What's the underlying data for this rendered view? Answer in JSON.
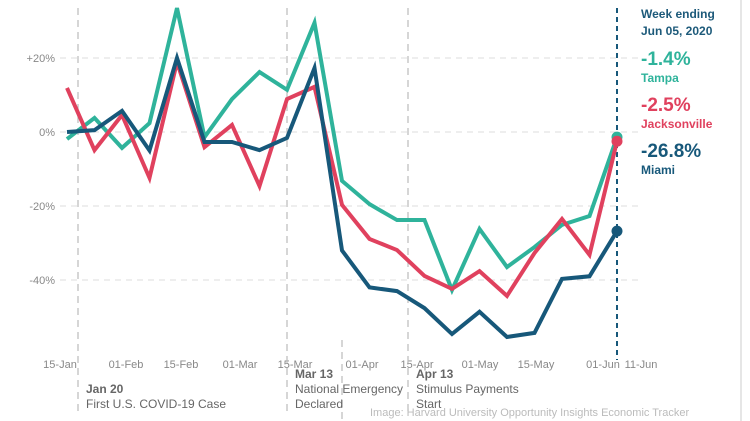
{
  "chart_data": {
    "type": "line",
    "title": "",
    "xlabel": "",
    "ylabel": "",
    "x": [
      "Jan 17",
      "Jan 24",
      "Jan 31",
      "Feb 07",
      "Feb 14",
      "Feb 21",
      "Feb 28",
      "Mar 06",
      "Mar 13",
      "Mar 20",
      "Mar 27",
      "Apr 03",
      "Apr 10",
      "Apr 17",
      "Apr 24",
      "May 01",
      "May 08",
      "May 15",
      "May 22",
      "May 29",
      "Jun 05"
    ],
    "x_ticks": [
      "15-Jan",
      "01-Feb",
      "15-Feb",
      "01-Mar",
      "15-Mar",
      "01-Apr",
      "15-Apr",
      "01-May",
      "15-May",
      "01-Jun",
      "11-Jun"
    ],
    "y_ticks": [
      "+20%",
      "0%",
      "-20%",
      "-40%"
    ],
    "y_tick_values": [
      20,
      0,
      -20,
      -40
    ],
    "ylim": [
      -60,
      35
    ],
    "grid": true,
    "series": [
      {
        "name": "Tampa",
        "color": "#2fb39b",
        "values": [
          -1.9,
          3.8,
          -4.3,
          2.4,
          33.5,
          -1.4,
          8.9,
          16.2,
          11.4,
          29.5,
          -13.2,
          -19.5,
          -23.8,
          -23.8,
          -42.7,
          -26.2,
          -36.5,
          -31.1,
          -25.1,
          -22.7,
          -1.4
        ]
      },
      {
        "name": "Jacksonville",
        "color": "#e0415e",
        "values": [
          11.9,
          -4.9,
          4.6,
          -12.4,
          18.9,
          -4.1,
          1.9,
          -14.6,
          8.9,
          12.2,
          -19.7,
          -28.9,
          -31.9,
          -38.9,
          -42.4,
          -37.6,
          -44.3,
          -32.7,
          -23.5,
          -33.2,
          -2.5
        ]
      },
      {
        "name": "Miami",
        "color": "#17587a",
        "values": [
          0,
          0.5,
          5.7,
          -5,
          20,
          -2.7,
          -2.7,
          -4.9,
          -1.6,
          17.3,
          -32,
          -42,
          -43,
          -47.6,
          -54.6,
          -48.6,
          -55.4,
          -54.3,
          -39.7,
          -39,
          -26.8
        ]
      }
    ],
    "annotations": [
      {
        "date": "Jan 20",
        "title": "Jan 20",
        "lines": [
          "First U.S. COVID-19 Case"
        ]
      },
      {
        "date": "Mar 13",
        "title": "Mar 13",
        "lines": [
          "National Emergency",
          "Declared"
        ]
      },
      {
        "date": "Apr 13",
        "title": "Apr 13",
        "lines": [
          "Stimulus Payments",
          "Start"
        ]
      }
    ]
  },
  "legend": {
    "week_label": "Week ending",
    "week_date": "Jun 05, 2020",
    "items": [
      {
        "value": "-1.4%",
        "city": "Tampa",
        "color": "#2fb39b"
      },
      {
        "value": "-2.5%",
        "city": "Jacksonville",
        "color": "#e0415e"
      },
      {
        "value": "-26.8%",
        "city": "Miami",
        "color": "#17587a"
      }
    ]
  },
  "credit": "Image: Harvard University Opportunity Insights Economic Tracker"
}
